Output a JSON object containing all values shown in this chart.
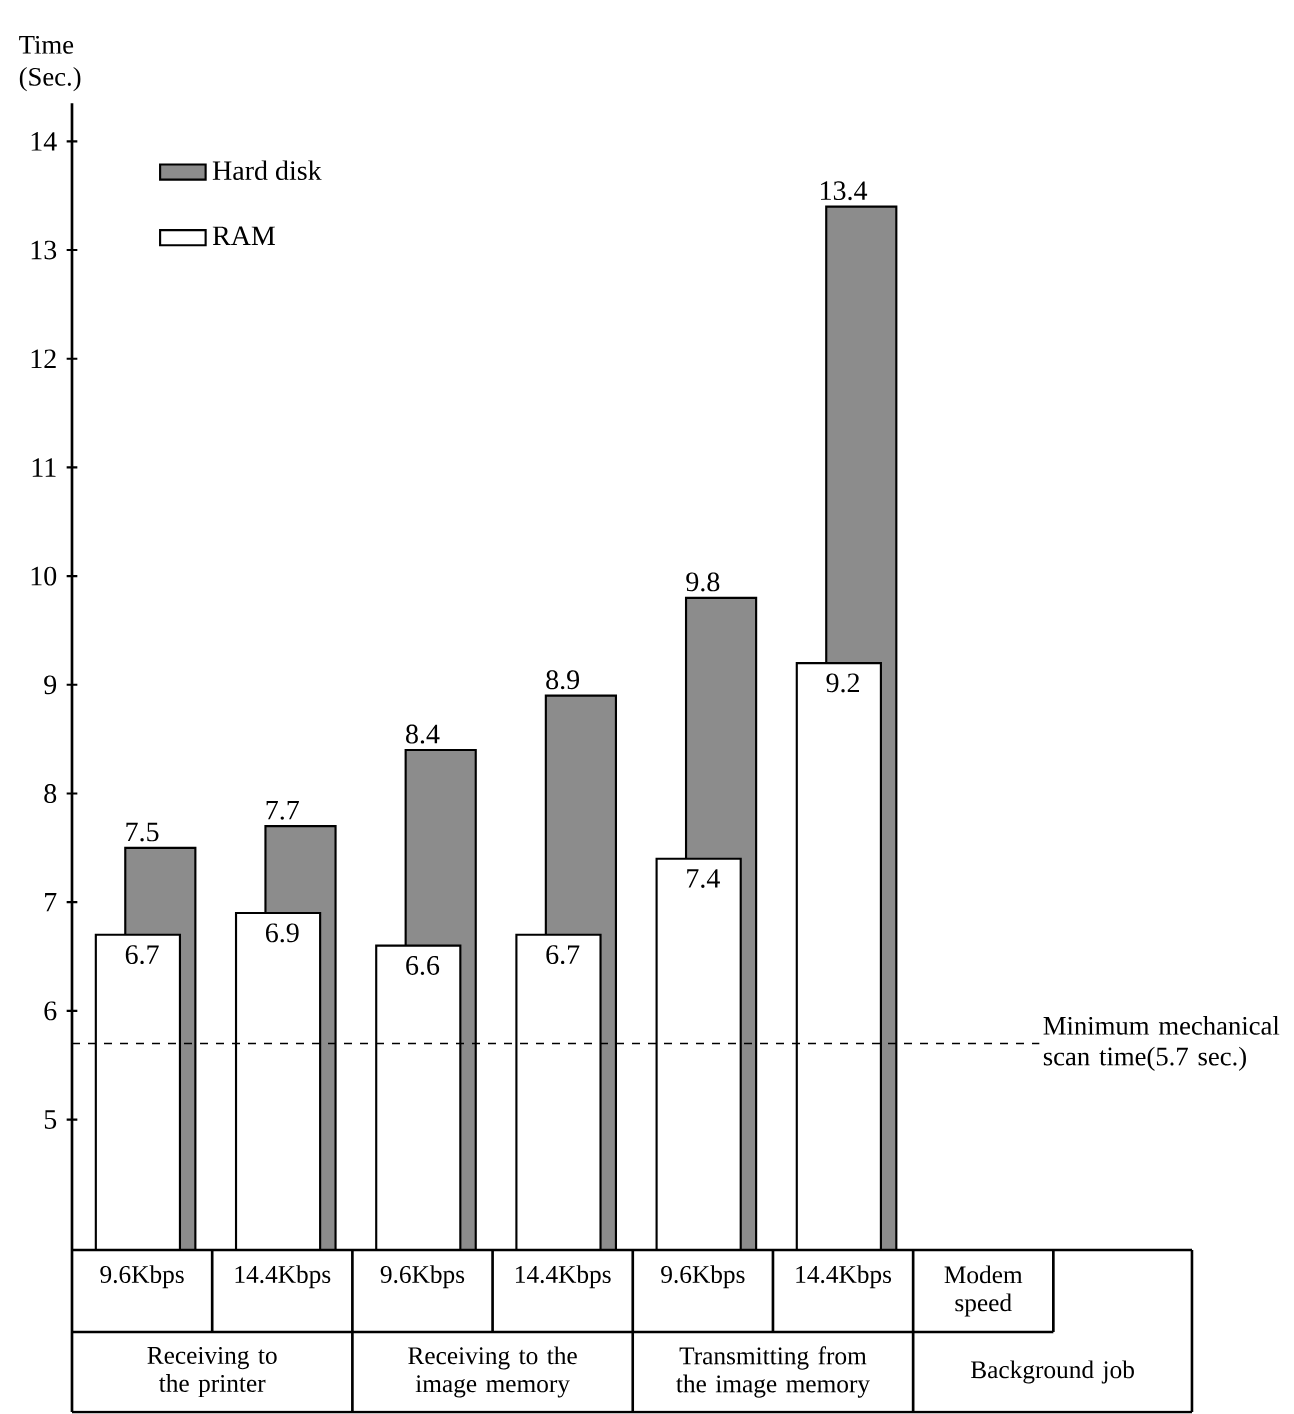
{
  "chart_data": {
    "type": "bar",
    "ylabel": "Time (Sec.)",
    "categories": [
      "9.6Kbps",
      "14.4Kbps",
      "9.6Kbps",
      "14.4Kbps",
      "9.6Kbps",
      "14.4Kbps"
    ],
    "series": [
      {
        "name": "Hard disk",
        "color": "#8c8c8c",
        "values": [
          7.5,
          7.7,
          8.4,
          8.9,
          9.8,
          13.4
        ]
      },
      {
        "name": "RAM",
        "color": "#ffffff",
        "values": [
          6.7,
          6.9,
          6.6,
          6.7,
          7.4,
          9.2
        ]
      }
    ],
    "ylim": [
      3.8,
      14.35
    ],
    "yticks": [
      5,
      6,
      7,
      8,
      9,
      10,
      11,
      12,
      13,
      14
    ],
    "data_labels": true,
    "legend": "top left",
    "ref_lines": [
      {
        "axis": "y",
        "value": 5.7,
        "label": "Minimum mechanical scan time(5.7 sec.)",
        "line_style": "dashed",
        "color": "#000000"
      }
    ],
    "annotations": [
      "Receiving to the printer",
      "Receiving to the image memory",
      "Transmitting from the image memory",
      "Modem speed",
      "Background job"
    ]
  }
}
